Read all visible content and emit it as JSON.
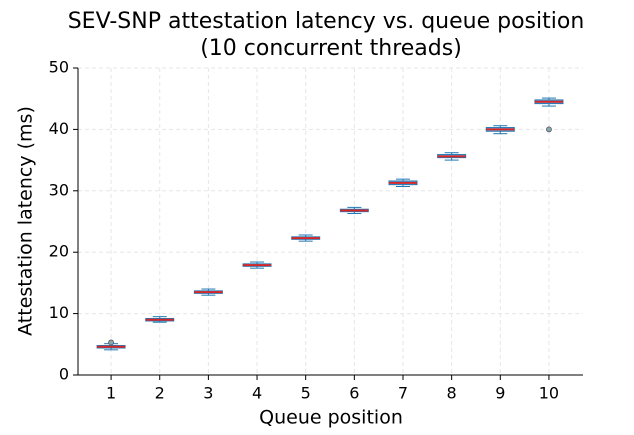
{
  "chart_data": {
    "type": "box",
    "title": [
      "SEV-SNP attestation latency vs. queue position",
      "(10 concurrent threads)"
    ],
    "xlabel": "Queue position",
    "ylabel": "Attestation latency (ms)",
    "x": [
      1,
      2,
      3,
      4,
      5,
      6,
      7,
      8,
      9,
      10
    ],
    "boxes": [
      {
        "low": 4.1,
        "q1": 4.4,
        "median": 4.6,
        "q3": 4.8,
        "high": 5.1,
        "outliers": [
          5.3
        ]
      },
      {
        "low": 8.6,
        "q1": 8.8,
        "median": 9.0,
        "q3": 9.2,
        "high": 9.5,
        "outliers": []
      },
      {
        "low": 13.0,
        "q1": 13.3,
        "median": 13.5,
        "q3": 13.7,
        "high": 14.0,
        "outliers": []
      },
      {
        "low": 17.4,
        "q1": 17.7,
        "median": 17.9,
        "q3": 18.1,
        "high": 18.4,
        "outliers": []
      },
      {
        "low": 21.8,
        "q1": 22.1,
        "median": 22.3,
        "q3": 22.5,
        "high": 22.8,
        "outliers": []
      },
      {
        "low": 26.3,
        "q1": 26.6,
        "median": 26.8,
        "q3": 27.0,
        "high": 27.3,
        "outliers": []
      },
      {
        "low": 30.7,
        "q1": 31.0,
        "median": 31.3,
        "q3": 31.6,
        "high": 31.9,
        "outliers": []
      },
      {
        "low": 35.0,
        "q1": 35.4,
        "median": 35.6,
        "q3": 35.9,
        "high": 36.2,
        "outliers": []
      },
      {
        "low": 39.3,
        "q1": 39.7,
        "median": 40.0,
        "q3": 40.3,
        "high": 40.6,
        "outliers": []
      },
      {
        "low": 43.8,
        "q1": 44.2,
        "median": 44.5,
        "q3": 44.8,
        "high": 45.1,
        "outliers": [
          40.0
        ]
      }
    ],
    "box_color": "#7fb0dc",
    "edge_color": "#1f77b4",
    "median_color": "#d62728",
    "xlim": [
      0.32,
      10.7
    ],
    "xticks": [
      1,
      2,
      3,
      4,
      5,
      6,
      7,
      8,
      9,
      10
    ],
    "ylim": [
      0,
      50
    ],
    "yticks": [
      0,
      10,
      20,
      30,
      40,
      50
    ],
    "grid": true
  }
}
